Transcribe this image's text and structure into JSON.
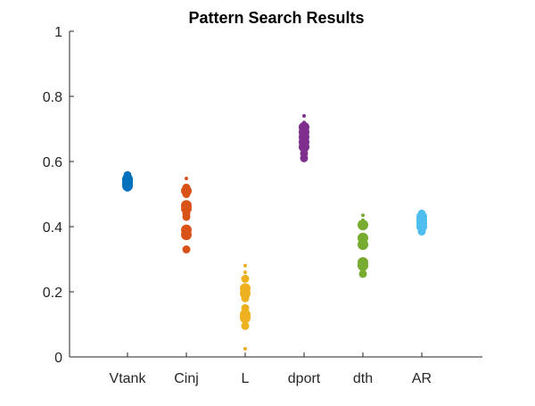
{
  "chart_data": {
    "type": "scatter",
    "title": "Pattern Search Results",
    "xlabel": "",
    "ylabel": "",
    "ylim": [
      0,
      1
    ],
    "yticks": [
      "0",
      "0.2",
      "0.4",
      "0.6",
      "0.8",
      "1"
    ],
    "yticks_values": [
      0,
      0.2,
      0.4,
      0.6,
      0.8,
      1
    ],
    "categories": [
      "Vtank",
      "Cinj",
      "L",
      "dport",
      "dth",
      "AR"
    ],
    "grid": false,
    "legend": "none",
    "series": [
      {
        "color": "#0072BD",
        "points": [
          {
            "y": 0.565,
            "s": 1
          },
          {
            "y": 0.558,
            "s": 2
          },
          {
            "y": 0.552,
            "s": 2
          },
          {
            "y": 0.546,
            "s": 3
          },
          {
            "y": 0.54,
            "s": 3
          },
          {
            "y": 0.535,
            "s": 3
          },
          {
            "y": 0.53,
            "s": 3
          },
          {
            "y": 0.525,
            "s": 3
          },
          {
            "y": 0.52,
            "s": 2
          }
        ]
      },
      {
        "color": "#D95319",
        "points": [
          {
            "y": 0.548,
            "s": 1
          },
          {
            "y": 0.52,
            "s": 2
          },
          {
            "y": 0.51,
            "s": 3
          },
          {
            "y": 0.5,
            "s": 2
          },
          {
            "y": 0.465,
            "s": 3
          },
          {
            "y": 0.455,
            "s": 3
          },
          {
            "y": 0.44,
            "s": 2
          },
          {
            "y": 0.43,
            "s": 2
          },
          {
            "y": 0.39,
            "s": 3
          },
          {
            "y": 0.375,
            "s": 3
          },
          {
            "y": 0.33,
            "s": 2
          }
        ]
      },
      {
        "color": "#EDB120",
        "points": [
          {
            "y": 0.28,
            "s": 1
          },
          {
            "y": 0.26,
            "s": 1
          },
          {
            "y": 0.24,
            "s": 2
          },
          {
            "y": 0.21,
            "s": 3
          },
          {
            "y": 0.195,
            "s": 3
          },
          {
            "y": 0.18,
            "s": 2
          },
          {
            "y": 0.15,
            "s": 2
          },
          {
            "y": 0.13,
            "s": 3
          },
          {
            "y": 0.12,
            "s": 3
          },
          {
            "y": 0.095,
            "s": 2
          },
          {
            "y": 0.025,
            "s": 1
          }
        ]
      },
      {
        "color": "#7E2F8E",
        "points": [
          {
            "y": 0.74,
            "s": 1
          },
          {
            "y": 0.72,
            "s": 1
          },
          {
            "y": 0.705,
            "s": 3
          },
          {
            "y": 0.69,
            "s": 3
          },
          {
            "y": 0.675,
            "s": 3
          },
          {
            "y": 0.66,
            "s": 3
          },
          {
            "y": 0.645,
            "s": 3
          },
          {
            "y": 0.625,
            "s": 2
          },
          {
            "y": 0.61,
            "s": 2
          }
        ]
      },
      {
        "color": "#77AC30",
        "points": [
          {
            "y": 0.435,
            "s": 1
          },
          {
            "y": 0.42,
            "s": 1
          },
          {
            "y": 0.405,
            "s": 3
          },
          {
            "y": 0.365,
            "s": 3
          },
          {
            "y": 0.345,
            "s": 3
          },
          {
            "y": 0.29,
            "s": 3
          },
          {
            "y": 0.28,
            "s": 3
          },
          {
            "y": 0.255,
            "s": 2
          }
        ]
      },
      {
        "color": "#4DBEEE",
        "points": [
          {
            "y": 0.44,
            "s": 2
          },
          {
            "y": 0.43,
            "s": 3
          },
          {
            "y": 0.42,
            "s": 3
          },
          {
            "y": 0.41,
            "s": 3
          },
          {
            "y": 0.4,
            "s": 3
          },
          {
            "y": 0.385,
            "s": 2
          }
        ]
      }
    ]
  }
}
